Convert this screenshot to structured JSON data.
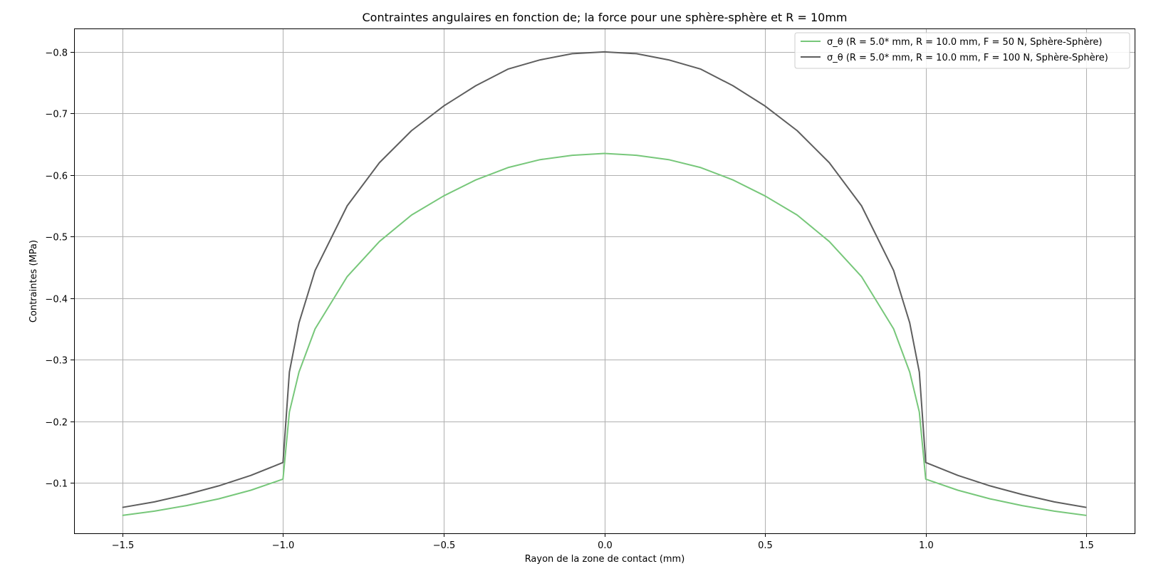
{
  "chart_data": {
    "type": "line",
    "title": "Contraintes angulaires en fonction de; la force pour une sphère-sphère et R = 10mm",
    "xlabel": "Rayon de la zone de contact (mm)",
    "ylabel": "Contraintes (MPa)",
    "xlim": [
      -1.65,
      1.65
    ],
    "ylim": [
      -0.018,
      -0.838
    ],
    "y_inverted": true,
    "grid": true,
    "legend_position": "top-right",
    "x_ticks": [
      -1.5,
      -1.0,
      -0.5,
      0.0,
      0.5,
      1.0,
      1.5
    ],
    "x_tick_labels": [
      "−1.5",
      "−1.0",
      "−0.5",
      "0.0",
      "0.5",
      "1.0",
      "1.5"
    ],
    "y_ticks": [
      -0.1,
      -0.2,
      -0.3,
      -0.4,
      -0.5,
      -0.6,
      -0.7,
      -0.8
    ],
    "y_tick_labels": [
      "−0.1",
      "−0.2",
      "−0.3",
      "−0.4",
      "−0.5",
      "−0.6",
      "−0.7",
      "−0.8"
    ],
    "series": [
      {
        "name": "σ_θ (R = 5.0* mm, R = 10.0 mm, F = 50 N, Sphère-Sphère)",
        "color": "#77c77a",
        "x": [
          -1.5,
          -1.4,
          -1.3,
          -1.2,
          -1.1,
          -1.0,
          -1.0,
          -0.98,
          -0.95,
          -0.9,
          -0.8,
          -0.7,
          -0.6,
          -0.5,
          -0.4,
          -0.3,
          -0.2,
          -0.1,
          0.0,
          0.1,
          0.2,
          0.3,
          0.4,
          0.5,
          0.6,
          0.7,
          0.8,
          0.9,
          0.95,
          0.98,
          1.0,
          1.0,
          1.1,
          1.2,
          1.3,
          1.4,
          1.5
        ],
        "y": [
          -0.047,
          -0.054,
          -0.063,
          -0.074,
          -0.088,
          -0.106,
          -0.106,
          -0.215,
          -0.28,
          -0.35,
          -0.435,
          -0.492,
          -0.535,
          -0.566,
          -0.592,
          -0.612,
          -0.625,
          -0.632,
          -0.635,
          -0.632,
          -0.625,
          -0.612,
          -0.592,
          -0.566,
          -0.535,
          -0.492,
          -0.435,
          -0.35,
          -0.28,
          -0.215,
          -0.106,
          -0.106,
          -0.088,
          -0.074,
          -0.063,
          -0.054,
          -0.047
        ]
      },
      {
        "name": "σ_θ (R = 5.0* mm, R = 10.0 mm, F = 100 N, Sphère-Sphère)",
        "color": "#5e5e5e",
        "x": [
          -1.5,
          -1.4,
          -1.3,
          -1.2,
          -1.1,
          -1.0,
          -1.0,
          -0.98,
          -0.95,
          -0.9,
          -0.8,
          -0.7,
          -0.6,
          -0.5,
          -0.4,
          -0.3,
          -0.2,
          -0.1,
          0.0,
          0.1,
          0.2,
          0.3,
          0.4,
          0.5,
          0.6,
          0.7,
          0.8,
          0.9,
          0.95,
          0.98,
          1.0,
          1.0,
          1.1,
          1.2,
          1.3,
          1.4,
          1.5
        ],
        "y": [
          -0.06,
          -0.069,
          -0.081,
          -0.095,
          -0.112,
          -0.133,
          -0.133,
          -0.28,
          -0.36,
          -0.445,
          -0.55,
          -0.62,
          -0.672,
          -0.712,
          -0.745,
          -0.772,
          -0.787,
          -0.797,
          -0.8,
          -0.797,
          -0.787,
          -0.772,
          -0.745,
          -0.712,
          -0.672,
          -0.62,
          -0.55,
          -0.445,
          -0.36,
          -0.28,
          -0.133,
          -0.133,
          -0.112,
          -0.095,
          -0.081,
          -0.069,
          -0.06
        ]
      }
    ]
  }
}
